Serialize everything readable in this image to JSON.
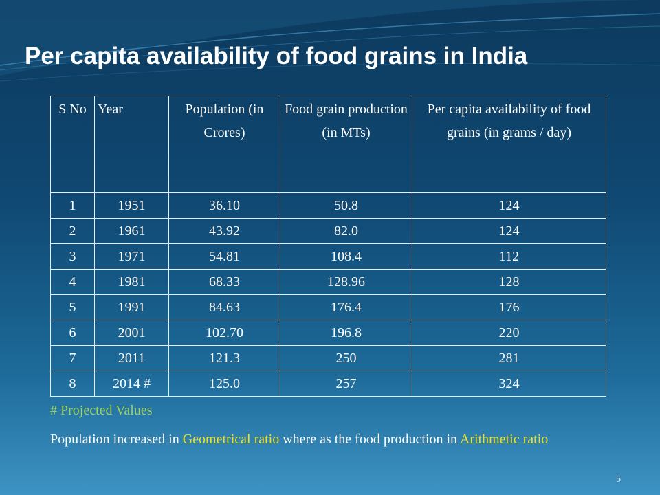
{
  "slide": {
    "title": "Per capita availability of food grains in India",
    "page_number": "5"
  },
  "table": {
    "headers": [
      "S No",
      "Year",
      "Population (in Crores)",
      "Food grain production (in MTs)",
      "Per capita availability of food grains (in grams / day)"
    ],
    "rows": [
      [
        "1",
        "1951",
        "36.10",
        "50.8",
        "124"
      ],
      [
        "2",
        "1961",
        "43.92",
        "82.0",
        "124"
      ],
      [
        "3",
        "1971",
        "54.81",
        "108.4",
        "112"
      ],
      [
        "4",
        "1981",
        "68.33",
        "128.96",
        "128"
      ],
      [
        "5",
        "1991",
        "84.63",
        "176.4",
        "176"
      ],
      [
        "6",
        "2001",
        "102.70",
        "196.8",
        "220"
      ],
      [
        "7",
        "2011",
        "121.3",
        "250",
        "281"
      ],
      [
        "8",
        "2014 #",
        "125.0",
        "257",
        "324"
      ]
    ]
  },
  "footnote": "# Projected Values",
  "summary": {
    "part1": "Population increased in ",
    "highlight1": "Geometrical ratio",
    "part2": " where as the food production in ",
    "highlight2": "Arithmetic ratio"
  },
  "colors": {
    "background": "#0f4872",
    "highlight": "#f0e020",
    "footnote": "#9fd35a"
  }
}
